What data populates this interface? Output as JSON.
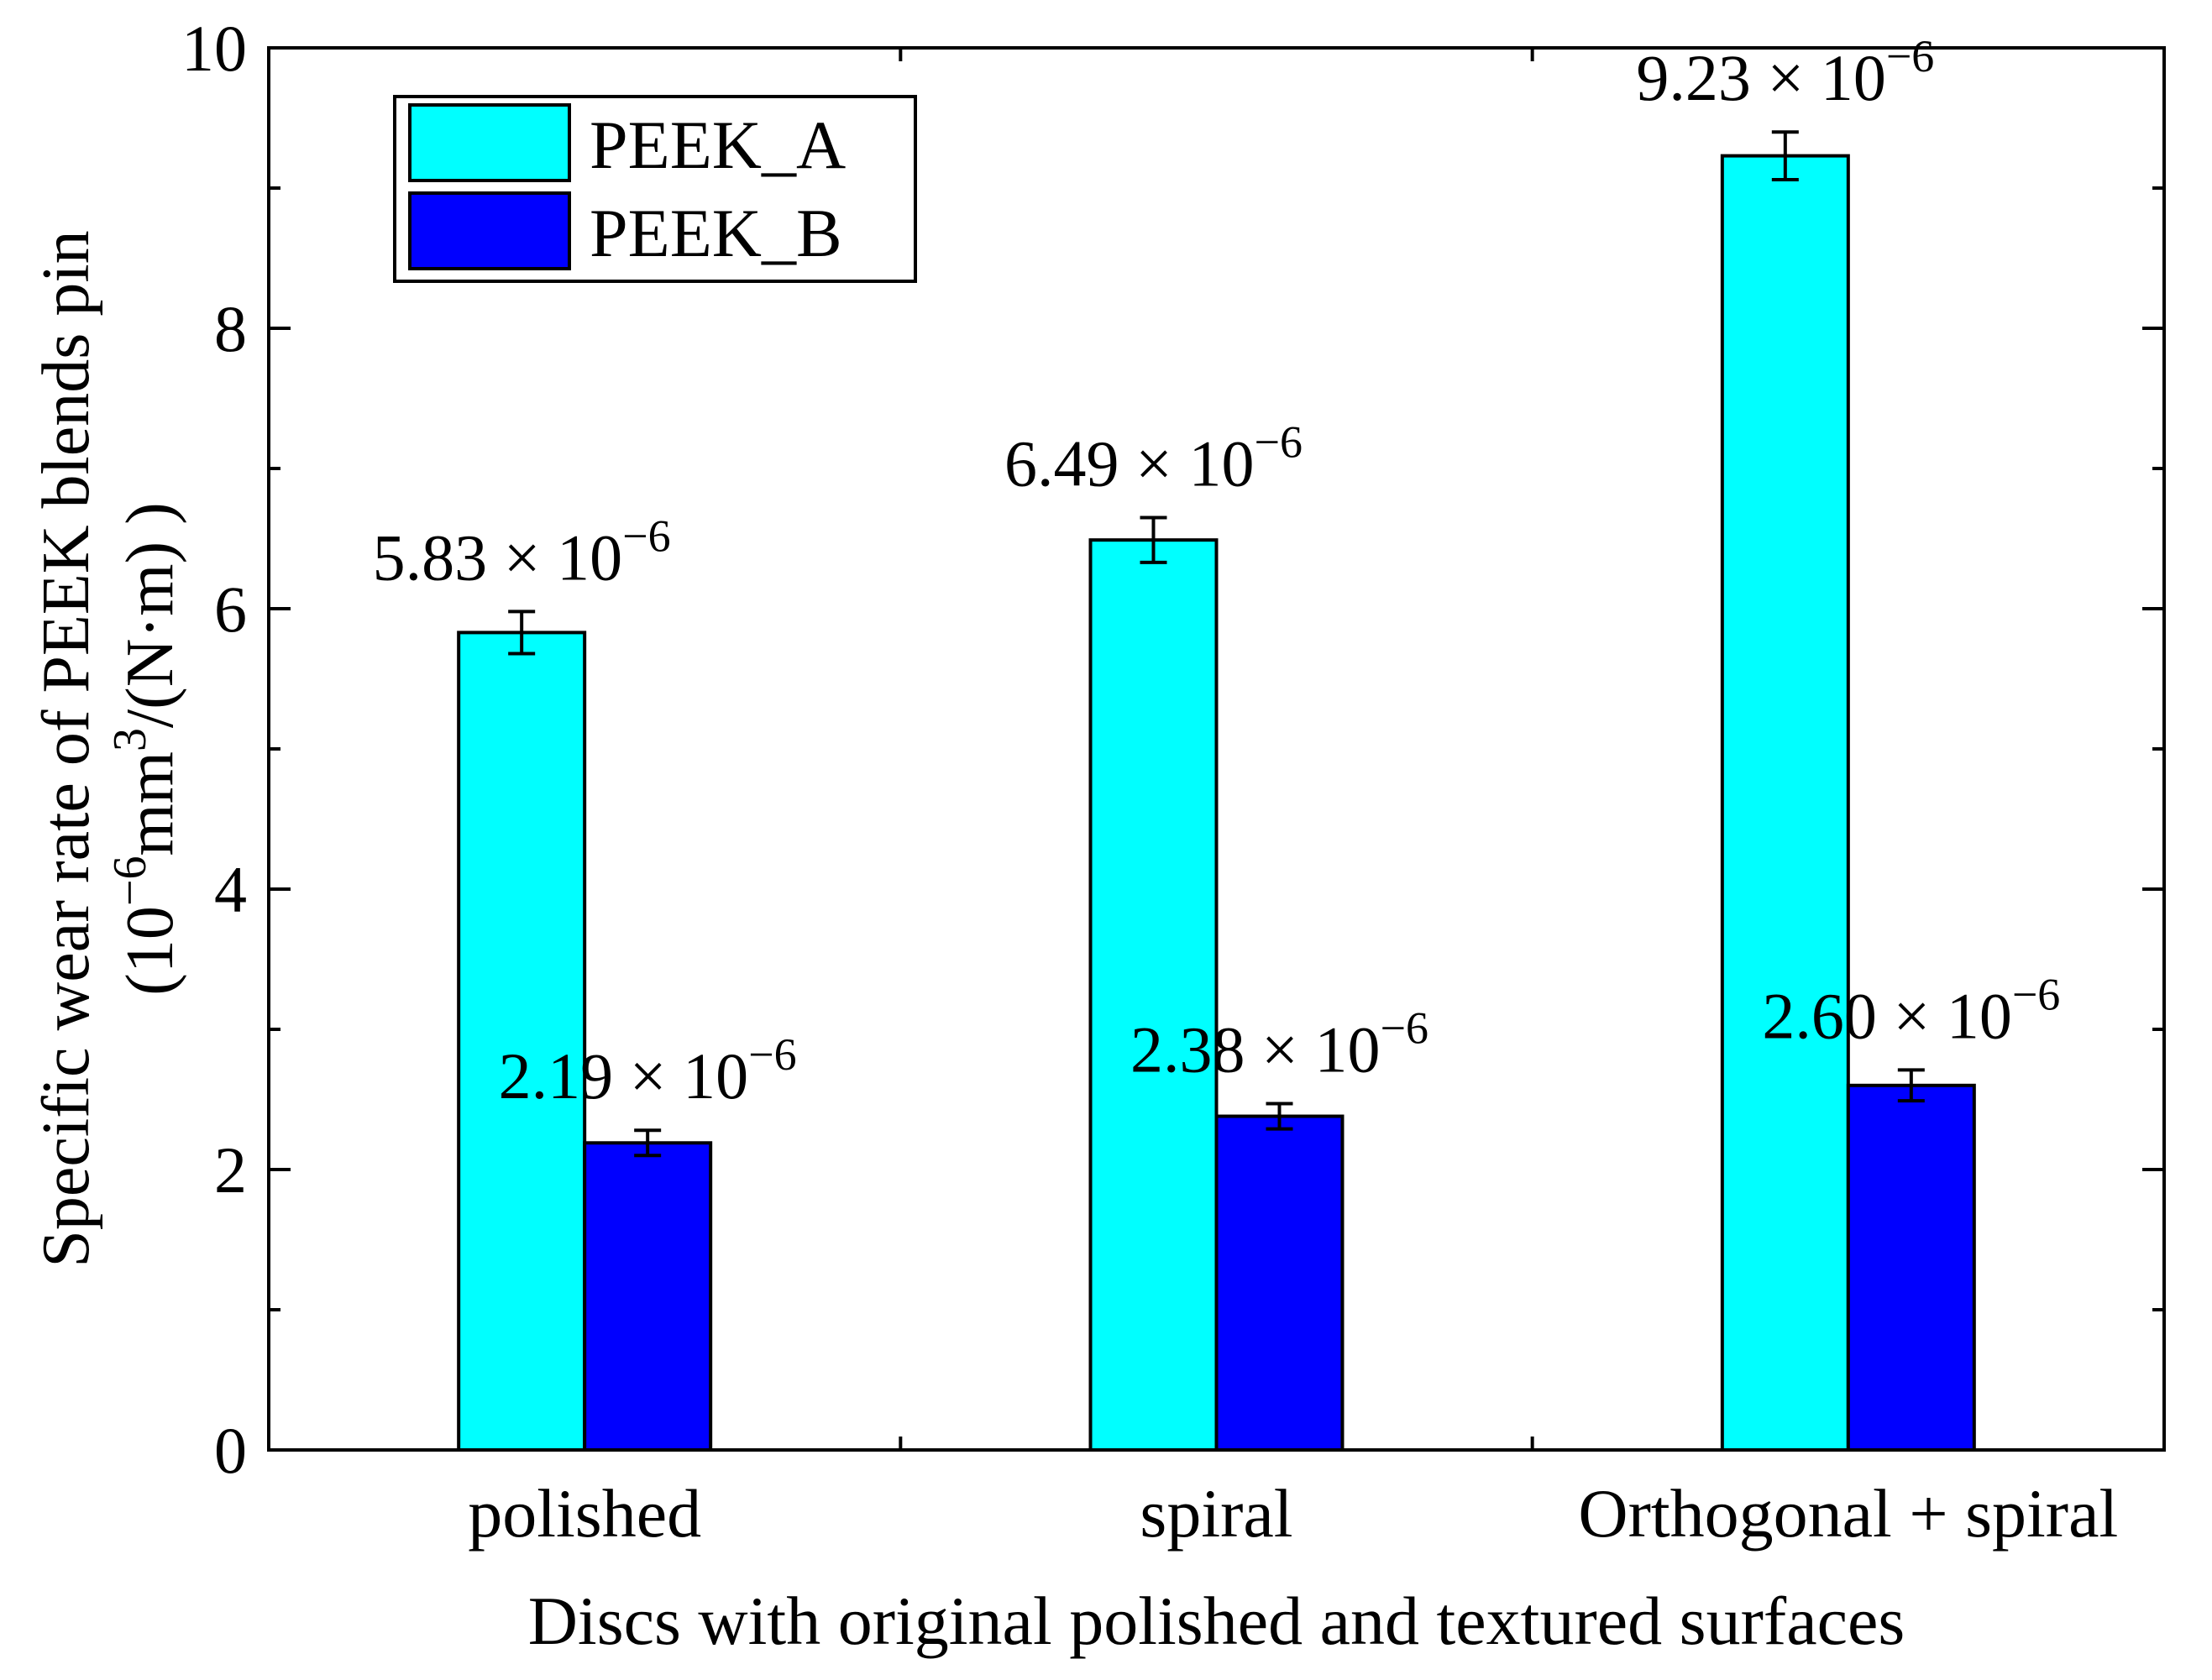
{
  "chart_data": {
    "type": "bar",
    "title": "",
    "xlabel": "Discs with original polished and textured surfaces",
    "ylabel_line1": "Specific wear rate of PEEK blends pin",
    "ylabel_line2": {
      "open": "(10",
      "exp": "−6",
      "unit": "mm",
      "unit_exp": "3",
      "close": "/(N·m) )"
    },
    "categories": [
      "polished",
      "spiral",
      "Orthogonal + spiral"
    ],
    "series": [
      {
        "name": "PEEK_A",
        "color": "#00FFFF",
        "values": [
          5.83,
          6.49,
          9.23
        ],
        "errors": [
          0.15,
          0.16,
          0.17
        ],
        "labels": [
          {
            "mantissa": "5.83 × 10",
            "exp": "−6"
          },
          {
            "mantissa": "6.49 × 10",
            "exp": "−6"
          },
          {
            "mantissa": "9.23 × 10",
            "exp": "−6"
          }
        ]
      },
      {
        "name": "PEEK_B",
        "color": "#0000FF",
        "values": [
          2.19,
          2.38,
          2.6
        ],
        "errors": [
          0.09,
          0.09,
          0.11
        ],
        "labels": [
          {
            "mantissa": "2.19 × 10",
            "exp": "−6"
          },
          {
            "mantissa": "2.38 × 10",
            "exp": "−6"
          },
          {
            "mantissa": "2.60 × 10",
            "exp": "−6"
          }
        ]
      }
    ],
    "ylim": [
      0,
      10
    ],
    "yticks": [
      0,
      2,
      4,
      6,
      8,
      10
    ],
    "yminor_step": 1,
    "grid": false,
    "legend_position": "top-left"
  }
}
